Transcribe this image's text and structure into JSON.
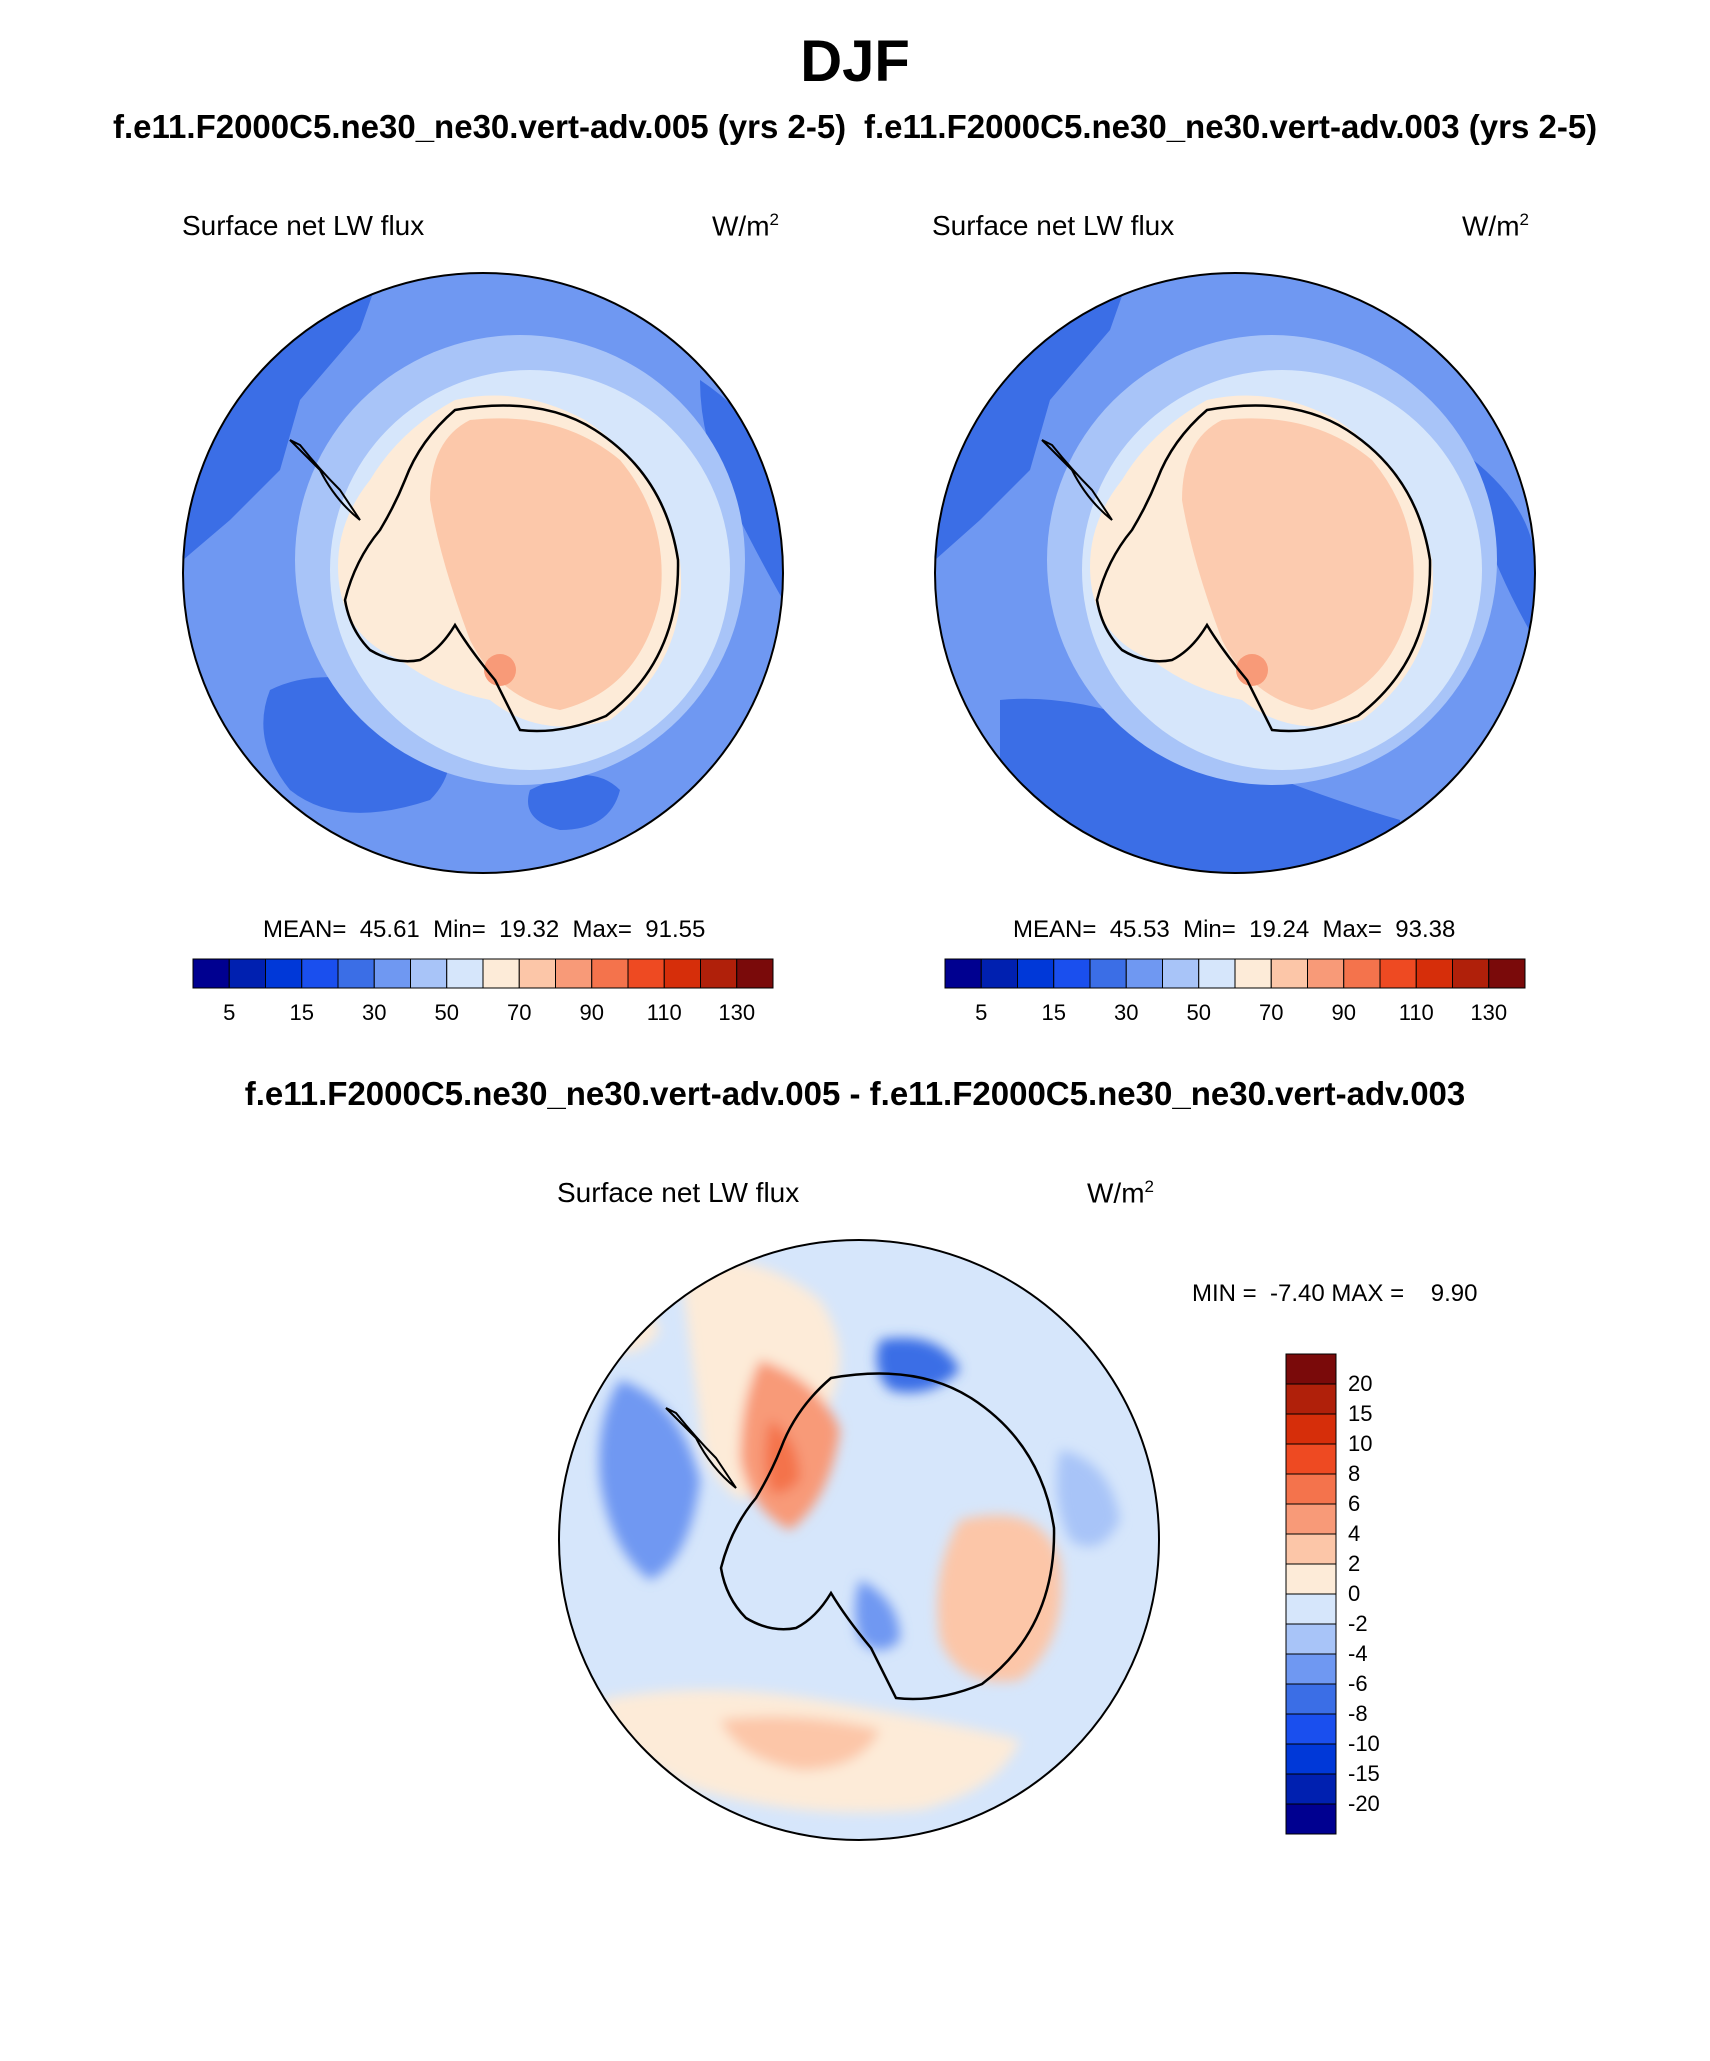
{
  "title": "DJF",
  "panel1": {
    "run": "f.e11.F2000C5.ne30_ne30.vert-adv.005 (yrs 2-5)",
    "variable": "Surface net LW flux",
    "units_base": "W/m",
    "units_exp": "2",
    "mean_label": "MEAN=",
    "mean": "45.61",
    "min_label": "Min=",
    "min": "19.32",
    "max_label": "Max=",
    "max": "91.55"
  },
  "panel2": {
    "run": "f.e11.F2000C5.ne30_ne30.vert-adv.003 (yrs 2-5)",
    "variable": "Surface net LW flux",
    "units_base": "W/m",
    "units_exp": "2",
    "mean_label": "MEAN=",
    "mean": "45.53",
    "min_label": "Min=",
    "min": "19.24",
    "max_label": "Max=",
    "max": "93.38"
  },
  "diff": {
    "title": "f.e11.F2000C5.ne30_ne30.vert-adv.005 - f.e11.F2000C5.ne30_ne30.vert-adv.003",
    "variable": "Surface net LW flux",
    "units_base": "W/m",
    "units_exp": "2",
    "min_label": "MIN =",
    "min": "-7.40",
    "max_label": "MAX =",
    "max": "9.90"
  },
  "colorbar_abs": {
    "colors": [
      "#000090",
      "#0020b0",
      "#0038d8",
      "#1a4fee",
      "#3b6ee6",
      "#6f98f2",
      "#a8c4f8",
      "#d6e6fb",
      "#fdebd8",
      "#fcc6a8",
      "#f89a78",
      "#f4734c",
      "#ee4a22",
      "#d62e0a",
      "#b0200a",
      "#7a0a0a"
    ],
    "ticks": [
      "5",
      "15",
      "30",
      "50",
      "70",
      "90",
      "110",
      "130"
    ]
  },
  "colorbar_diff": {
    "colors": [
      "#000090",
      "#0020b0",
      "#0038d8",
      "#1a4fee",
      "#3b6ee6",
      "#6f98f2",
      "#a8c4f8",
      "#d6e6fb",
      "#fdebd8",
      "#fcc6a8",
      "#f89a78",
      "#f4734c",
      "#ee4a22",
      "#d62e0a",
      "#b0200a",
      "#7a0a0a"
    ],
    "ticks": [
      "20",
      "15",
      "10",
      "8",
      "6",
      "4",
      "2",
      "0",
      "-2",
      "-4",
      "-6",
      "-8",
      "-10",
      "-15",
      "-20"
    ]
  }
}
